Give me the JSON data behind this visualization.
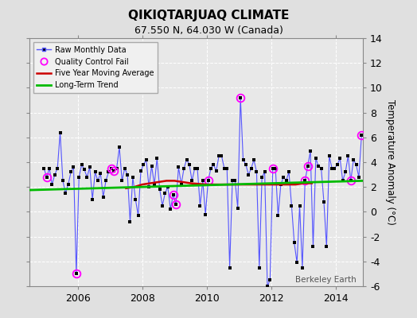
{
  "title": "QIKIQTARJUAQ CLIMATE",
  "subtitle": "67.550 N, 64.030 W (Canada)",
  "ylabel": "Temperature Anomaly (°C)",
  "watermark": "Berkeley Earth",
  "ylim": [
    -6,
    14
  ],
  "yticks": [
    -6,
    -4,
    -2,
    0,
    2,
    4,
    6,
    8,
    10,
    12,
    14
  ],
  "xlim": [
    2004.5,
    2014.83
  ],
  "xticks": [
    2006,
    2008,
    2010,
    2012,
    2014
  ],
  "bg_color": "#e0e0e0",
  "plot_bg_color": "#e8e8e8",
  "raw_color": "#5555ff",
  "raw_marker_color": "#000000",
  "qc_color": "#ff00ff",
  "moving_avg_color": "#cc0000",
  "trend_color": "#00bb00",
  "raw_data_x": [
    2004.958,
    2005.042,
    2005.125,
    2005.208,
    2005.292,
    2005.375,
    2005.458,
    2005.542,
    2005.625,
    2005.708,
    2005.792,
    2005.875,
    2005.958,
    2006.042,
    2006.125,
    2006.208,
    2006.292,
    2006.375,
    2006.458,
    2006.542,
    2006.625,
    2006.708,
    2006.792,
    2006.875,
    2006.958,
    2007.042,
    2007.125,
    2007.208,
    2007.292,
    2007.375,
    2007.458,
    2007.542,
    2007.625,
    2007.708,
    2007.792,
    2007.875,
    2007.958,
    2008.042,
    2008.125,
    2008.208,
    2008.292,
    2008.375,
    2008.458,
    2008.542,
    2008.625,
    2008.708,
    2008.792,
    2008.875,
    2008.958,
    2009.042,
    2009.125,
    2009.208,
    2009.292,
    2009.375,
    2009.458,
    2009.542,
    2009.625,
    2009.708,
    2009.792,
    2009.875,
    2009.958,
    2010.042,
    2010.125,
    2010.208,
    2010.292,
    2010.375,
    2010.458,
    2010.542,
    2010.625,
    2010.708,
    2010.792,
    2010.875,
    2010.958,
    2011.042,
    2011.125,
    2011.208,
    2011.292,
    2011.375,
    2011.458,
    2011.542,
    2011.625,
    2011.708,
    2011.792,
    2011.875,
    2011.958,
    2012.042,
    2012.125,
    2012.208,
    2012.292,
    2012.375,
    2012.458,
    2012.542,
    2012.625,
    2012.708,
    2012.792,
    2012.875,
    2012.958,
    2013.042,
    2013.125,
    2013.208,
    2013.292,
    2013.375,
    2013.458,
    2013.542,
    2013.625,
    2013.708,
    2013.792,
    2013.875,
    2013.958,
    2014.042,
    2014.125,
    2014.208,
    2014.292,
    2014.375,
    2014.458,
    2014.542,
    2014.625,
    2014.708,
    2014.792
  ],
  "raw_data_y": [
    3.5,
    2.8,
    3.5,
    2.2,
    3.0,
    3.5,
    6.4,
    2.5,
    1.5,
    2.2,
    3.2,
    3.6,
    -5.0,
    2.8,
    3.8,
    3.4,
    2.8,
    3.6,
    1.0,
    3.2,
    2.5,
    3.1,
    1.2,
    2.5,
    3.2,
    3.5,
    3.3,
    3.5,
    5.2,
    2.5,
    3.5,
    3.0,
    -0.8,
    2.8,
    1.0,
    -0.3,
    3.3,
    3.8,
    4.2,
    2.0,
    3.7,
    2.2,
    4.3,
    1.8,
    0.5,
    1.5,
    2.0,
    0.2,
    1.4,
    0.6,
    3.6,
    2.2,
    3.5,
    4.2,
    3.8,
    2.5,
    3.5,
    3.5,
    0.5,
    2.5,
    -0.2,
    2.5,
    3.5,
    3.8,
    3.3,
    4.5,
    4.5,
    3.5,
    3.5,
    -4.5,
    2.5,
    2.5,
    0.3,
    9.2,
    4.2,
    3.8,
    3.0,
    3.5,
    4.2,
    3.2,
    -4.5,
    2.8,
    3.2,
    -6.0,
    -5.5,
    3.5,
    3.5,
    -0.3,
    2.2,
    2.8,
    2.5,
    3.2,
    0.5,
    -2.5,
    -4.1,
    0.5,
    -4.5,
    2.5,
    3.7,
    4.9,
    -2.8,
    4.3,
    3.7,
    3.5,
    0.8,
    -2.8,
    4.5,
    3.5,
    3.5,
    3.8,
    4.3,
    2.5,
    3.2,
    4.5,
    2.5,
    4.2,
    3.8,
    2.8,
    6.2
  ],
  "qc_fail_x": [
    2005.042,
    2005.958,
    2007.042,
    2007.125,
    2008.958,
    2009.042,
    2010.042,
    2011.042,
    2012.042,
    2013.042,
    2013.125,
    2014.458,
    2014.792
  ],
  "qc_fail_y": [
    2.8,
    -5.0,
    3.5,
    3.3,
    1.4,
    0.6,
    2.5,
    9.2,
    3.5,
    2.5,
    3.7,
    2.5,
    6.2
  ],
  "moving_avg_x": [
    2007.5,
    2007.75,
    2008.0,
    2008.25,
    2008.5,
    2008.75,
    2009.0,
    2009.25,
    2009.5,
    2009.75,
    2010.0,
    2010.25,
    2010.5,
    2010.75,
    2011.0,
    2011.25,
    2011.5,
    2011.75,
    2012.0,
    2012.25,
    2012.5,
    2012.75,
    2013.0,
    2013.25
  ],
  "moving_avg_y": [
    1.9,
    2.0,
    2.2,
    2.3,
    2.4,
    2.5,
    2.5,
    2.4,
    2.3,
    2.25,
    2.2,
    2.2,
    2.2,
    2.2,
    2.2,
    2.2,
    2.2,
    2.2,
    2.2,
    2.2,
    2.2,
    2.2,
    2.3,
    2.3
  ],
  "trend_x": [
    2004.5,
    2014.83
  ],
  "trend_y": [
    1.75,
    2.5
  ]
}
